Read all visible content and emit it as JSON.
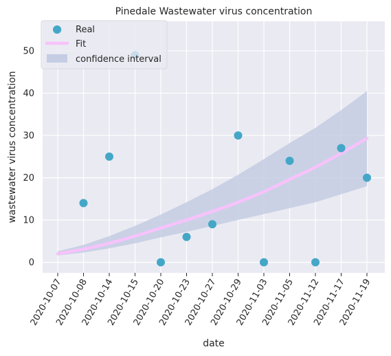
{
  "chart_data": {
    "type": "scatter",
    "title": "Pinedale Wastewater virus concentration",
    "xlabel": "date",
    "ylabel": "wastewater virus concentration",
    "categories": [
      "2020-10-07",
      "2020-10-08",
      "2020-10-14",
      "2020-10-15",
      "2020-10-20",
      "2020-10-23",
      "2020-10-27",
      "2020-10-29",
      "2020-11-03",
      "2020-11-05",
      "2020-11-12",
      "2020-11-17",
      "2020-11-19"
    ],
    "y_ticks": [
      0,
      10,
      20,
      30,
      40,
      50
    ],
    "ylim": [
      -2.5,
      57
    ],
    "grid": true,
    "legend_position": "top-left",
    "series": [
      {
        "name": "Real",
        "kind": "scatter",
        "color": "#44a7c7",
        "values": [
          55,
          14,
          25,
          49,
          0,
          6,
          9,
          30,
          0,
          24,
          0,
          27,
          20
        ]
      },
      {
        "name": "Fit",
        "kind": "line",
        "color": "#f7c2fb",
        "values": [
          2,
          3.1,
          4.5,
          6.2,
          8.1,
          10,
          12,
          14.2,
          16.7,
          19.6,
          22.5,
          25.8,
          29.3
        ]
      },
      {
        "name": "confidence interval",
        "kind": "band",
        "color": "#c4cde3",
        "lower": [
          1.6,
          2.3,
          3.3,
          4.5,
          5.9,
          7.2,
          8.6,
          10,
          11.4,
          12.8,
          14.2,
          16.1,
          18
        ],
        "upper": [
          2.6,
          4.1,
          6.2,
          8.6,
          11.3,
          14.2,
          17.3,
          20.7,
          24.4,
          28.2,
          31.8,
          36,
          40.5
        ]
      }
    ],
    "colors": {
      "plot_bg": "#eaeaf2",
      "grid": "#ffffff",
      "text": "#262626"
    }
  }
}
